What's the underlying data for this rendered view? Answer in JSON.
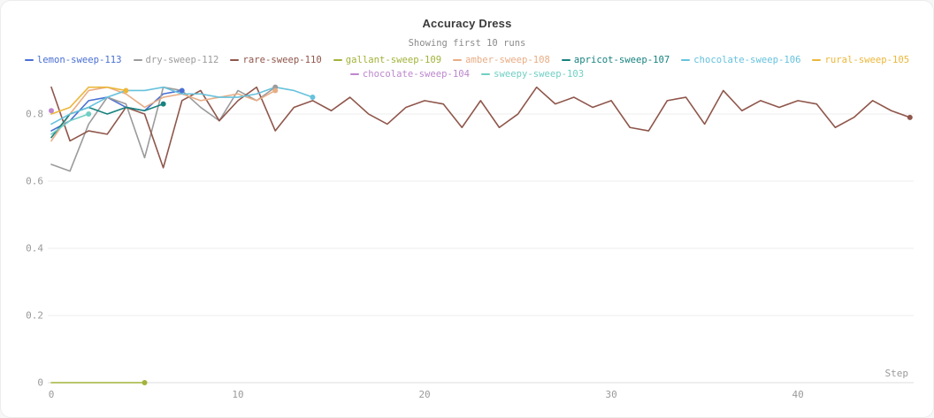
{
  "header": {
    "title": "Accuracy Dress",
    "subtitle": "Showing first 10 runs"
  },
  "chart_data": {
    "type": "line",
    "title": "Accuracy Dress",
    "subtitle": "Showing first 10 runs",
    "xlabel": "Step",
    "ylabel": "",
    "xlim": [
      0,
      46.2
    ],
    "ylim": [
      0,
      0.887
    ],
    "x_ticks": [
      0,
      10,
      20,
      30,
      40
    ],
    "y_ticks": [
      0,
      0.2,
      0.4,
      0.6,
      0.8
    ],
    "grid": "horizontal",
    "legend_position": "top",
    "grid_color": "#ececec",
    "zero_line_color": "#dcdcdc",
    "series": [
      {
        "name": "lemon-sweep-113",
        "color": "#4a6fd4",
        "end_dot": true,
        "values": [
          0.75,
          0.78,
          0.84,
          0.85,
          0.82,
          0.81,
          0.86,
          0.87
        ]
      },
      {
        "name": "dry-sweep-112",
        "color": "#9b9b9b",
        "end_dot": true,
        "values": [
          0.65,
          0.63,
          0.77,
          0.85,
          0.83,
          0.67,
          0.88,
          0.87,
          0.82,
          0.78,
          0.87,
          0.84,
          0.88
        ]
      },
      {
        "name": "rare-sweep-110",
        "color": "#8f564b",
        "end_dot": true,
        "values": [
          0.88,
          0.72,
          0.75,
          0.74,
          0.82,
          0.8,
          0.64,
          0.84,
          0.87,
          0.78,
          0.84,
          0.88,
          0.75,
          0.82,
          0.84,
          0.81,
          0.85,
          0.8,
          0.77,
          0.82,
          0.84,
          0.83,
          0.76,
          0.84,
          0.76,
          0.8,
          0.88,
          0.83,
          0.85,
          0.82,
          0.84,
          0.76,
          0.75,
          0.84,
          0.85,
          0.77,
          0.87,
          0.81,
          0.84,
          0.82,
          0.84,
          0.83,
          0.76,
          0.79,
          0.84,
          0.81,
          0.79
        ]
      },
      {
        "name": "gallant-sweep-109",
        "color": "#a3b33a",
        "end_dot": true,
        "values": [
          0,
          0,
          0,
          0,
          0,
          0
        ]
      },
      {
        "name": "amber-sweep-108",
        "color": "#e8ad85",
        "end_dot": true,
        "values": [
          0.72,
          0.8,
          0.87,
          0.88,
          0.86,
          0.82,
          0.85,
          0.86,
          0.84,
          0.85,
          0.86,
          0.84,
          0.87
        ]
      },
      {
        "name": "apricot-sweep-107",
        "color": "#17827f",
        "end_dot": true,
        "values": [
          0.73,
          0.8,
          0.82,
          0.8,
          0.82,
          0.81,
          0.83
        ]
      },
      {
        "name": "chocolate-sweep-106",
        "color": "#66c2dd",
        "end_dot": true,
        "values": [
          0.77,
          0.8,
          0.82,
          0.85,
          0.87,
          0.87,
          0.88,
          0.86,
          0.86,
          0.85,
          0.85,
          0.86,
          0.88,
          0.87,
          0.85
        ]
      },
      {
        "name": "rural-sweep-105",
        "color": "#ecb73a",
        "end_dot": true,
        "values": [
          0.8,
          0.82,
          0.88,
          0.88,
          0.87
        ]
      },
      {
        "name": "chocolate-sweep-104",
        "color": "#bd86ce",
        "end_dot": true,
        "values": [
          0.81
        ]
      },
      {
        "name": "sweepy-sweep-103",
        "color": "#70cfc4",
        "end_dot": true,
        "values": [
          0.74,
          0.78,
          0.8
        ]
      }
    ]
  }
}
